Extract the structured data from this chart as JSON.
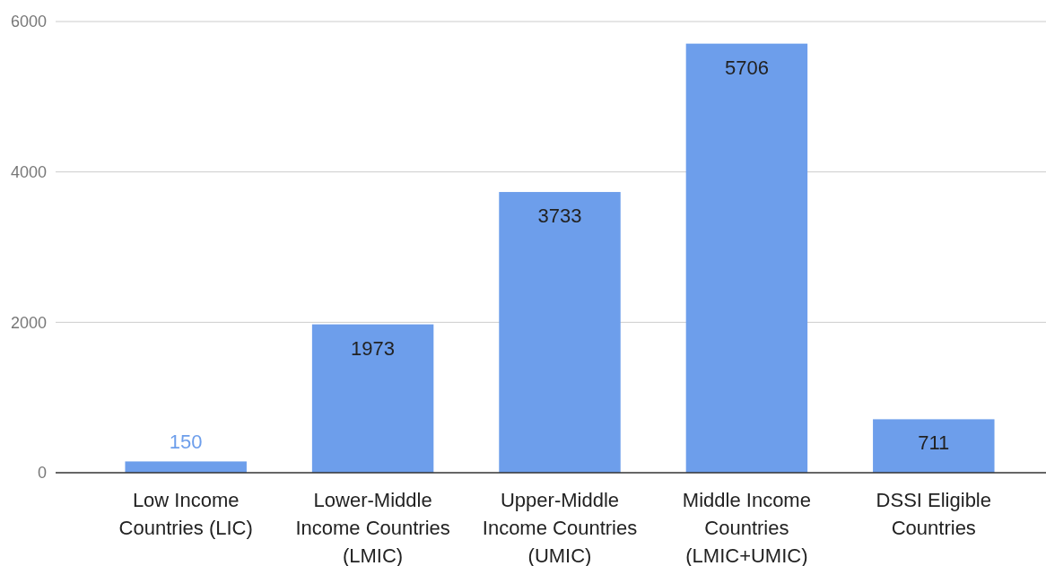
{
  "chart_data": {
    "type": "bar",
    "categories": [
      "Low Income Countries (LIC)",
      "Lower-Middle Income Countries (LMIC)",
      "Upper-Middle Income Countries (UMIC)",
      "Middle Income Countries (LMIC+UMIC)",
      "DSSI Eligible Countries"
    ],
    "values": [
      150,
      1973,
      3733,
      5706,
      711
    ],
    "color": "#6d9eeb",
    "ylim": [
      0,
      6000
    ],
    "yticks": [
      0,
      2000,
      4000,
      6000
    ],
    "grid": "y",
    "data_labels": true
  }
}
